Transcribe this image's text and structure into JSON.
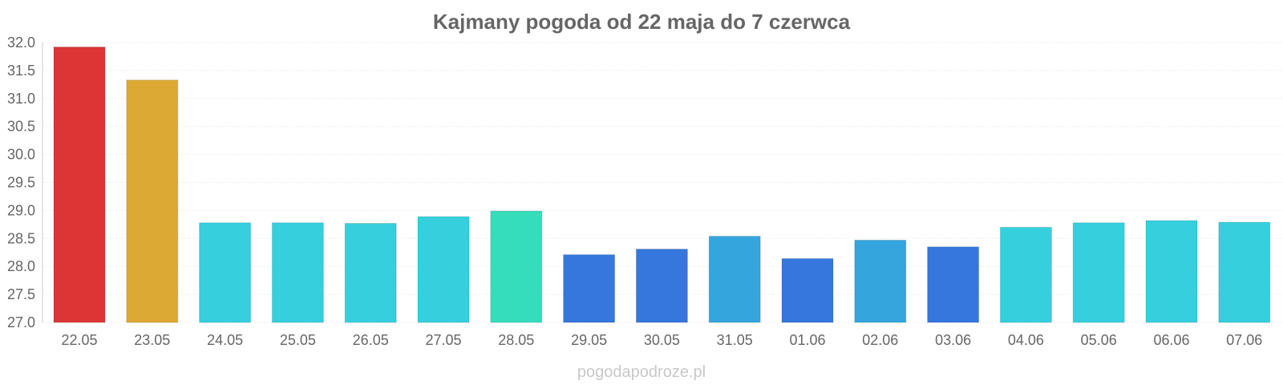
{
  "chart_data": {
    "type": "bar",
    "title": "Kajmany pogoda od 22 maja do 7 czerwca",
    "categories": [
      "22.05",
      "23.05",
      "24.05",
      "25.05",
      "26.05",
      "27.05",
      "28.05",
      "29.05",
      "30.05",
      "31.05",
      "01.06",
      "02.06",
      "03.06",
      "04.06",
      "05.06",
      "06.06",
      "07.06"
    ],
    "values": [
      31.92,
      31.33,
      28.78,
      28.78,
      28.77,
      28.89,
      28.99,
      28.21,
      28.31,
      28.54,
      28.14,
      28.47,
      28.35,
      28.7,
      28.78,
      28.82,
      28.79
    ],
    "colors": [
      "#dd3535",
      "#dda935",
      "#35cfdd",
      "#35cfdd",
      "#35cfdd",
      "#35cfdd",
      "#35ddbd",
      "#3577dd",
      "#3577dd",
      "#35a5dd",
      "#3577dd",
      "#35a5dd",
      "#3577dd",
      "#35cfdd",
      "#35cfdd",
      "#35cfdd",
      "#35cfdd"
    ],
    "ylim": [
      27.0,
      32.0
    ],
    "yticks": [
      "27.0",
      "27.5",
      "28.0",
      "28.5",
      "29.0",
      "29.5",
      "30.0",
      "30.5",
      "31.0",
      "31.5",
      "32.0"
    ],
    "grid": true,
    "legend": "none"
  },
  "source_label": "pogodapodroze.pl"
}
